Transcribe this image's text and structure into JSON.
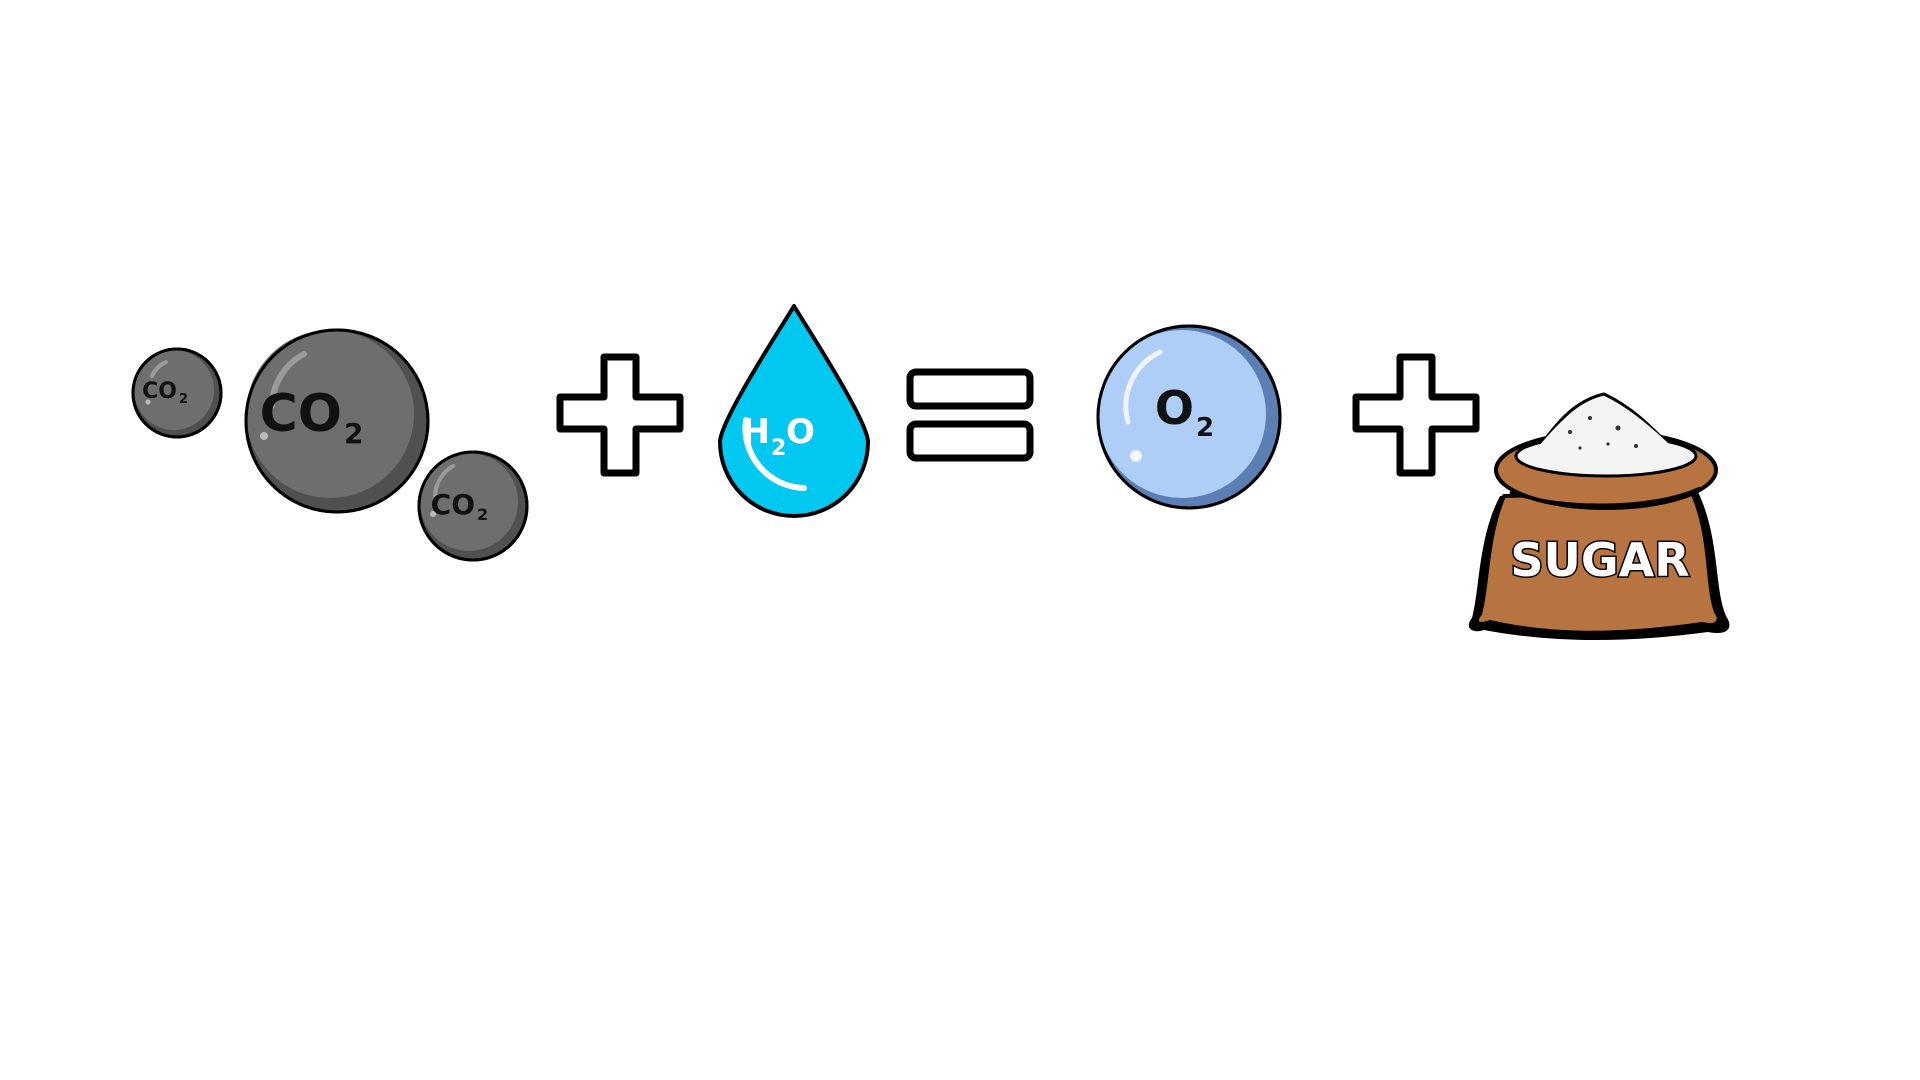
{
  "equation": {
    "co2_small": {
      "main": "CO",
      "sub": "2"
    },
    "co2_large": {
      "main": "CO",
      "sub": "2"
    },
    "co2_medium": {
      "main": "CO",
      "sub": "2"
    },
    "h2o": {
      "h": "H",
      "sub": "2",
      "o": "O"
    },
    "o2": {
      "main": "O",
      "sub": "2"
    },
    "sugar_label": "SUGAR"
  },
  "colors": {
    "co2_fill": "#6e6e6e",
    "co2_shadow": "#505050",
    "water_fill": "#00c8f0",
    "o2_fill": "#aecdf7",
    "o2_shadow": "#5b7fb2",
    "sack_fill": "#b87440",
    "sugar_fill": "#f4f4f4",
    "outline": "#000000"
  }
}
